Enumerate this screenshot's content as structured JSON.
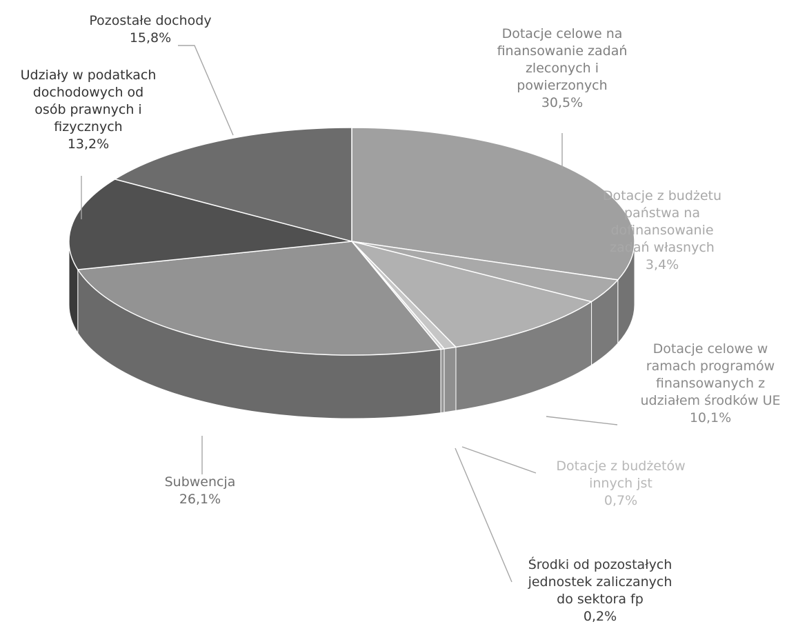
{
  "chart_data": {
    "type": "pie",
    "style": "3d",
    "title": "",
    "slices": [
      {
        "key": "dotacje-celowe-zlecone",
        "label": [
          "Dotacje celowe na",
          "finansowanie zadań",
          "zleconych i",
          "powierzonych"
        ],
        "value_label": "30,5%",
        "value": 30.5,
        "color": "#a0a0a0",
        "text_color": "#7f7f7f"
      },
      {
        "key": "dotacje-bp-wlasne",
        "label": [
          "Dotacje z budżetu",
          "państwa na",
          "dofinansowanie",
          "zadań własnych"
        ],
        "value_label": "3,4%",
        "value": 3.4,
        "color": "#a9a9a9",
        "text_color": "#a8a8a8"
      },
      {
        "key": "dotacje-ue",
        "label": [
          "Dotacje celowe w",
          "ramach programów",
          "finansowanych z",
          "udziałem środków UE"
        ],
        "value_label": "10,1%",
        "value": 10.1,
        "color": "#b1b1b1",
        "text_color": "#8a8a8a"
      },
      {
        "key": "dotacje-inne-jst",
        "label": [
          "Dotacje z budżetów",
          "innych jst"
        ],
        "value_label": "0,7%",
        "value": 0.7,
        "color": "#c6c6c6",
        "text_color": "#b8b8b8"
      },
      {
        "key": "srodki-sektor-fp",
        "label": [
          "Środki od pozostałych",
          "jednostek zaliczanych",
          "do sektora fp"
        ],
        "value_label": "0,2%",
        "value": 0.2,
        "color": "#d2d2d2",
        "text_color": "#3c3c3c"
      },
      {
        "key": "subwencja",
        "label": [
          "Subwencja"
        ],
        "value_label": "26,1%",
        "value": 26.1,
        "color": "#939393",
        "text_color": "#707070"
      },
      {
        "key": "udzialy-podatki",
        "label": [
          "Udziały w podatkach",
          "dochodowych od",
          "osób prawnych i",
          "fizycznych"
        ],
        "value_label": "13,2%",
        "value": 13.2,
        "color": "#505050",
        "text_color": "#333333"
      },
      {
        "key": "pozostale-dochody",
        "label": [
          "Pozostałe dochody"
        ],
        "value_label": "15,8%",
        "value": 15.8,
        "color": "#6c6c6c",
        "text_color": "#3a3a3a"
      }
    ]
  }
}
